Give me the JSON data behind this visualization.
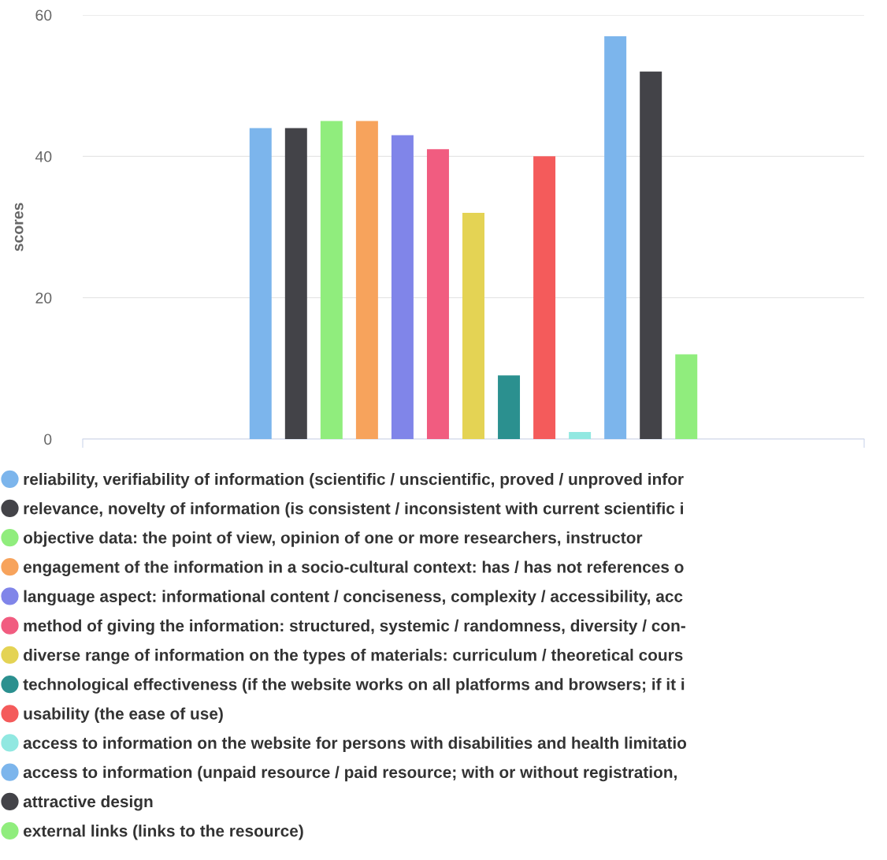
{
  "chart_data": {
    "type": "bar",
    "ylabel": "scores",
    "categories": [
      null
    ],
    "ylim": [
      0,
      60
    ],
    "yticks": [
      0,
      20,
      40,
      60
    ],
    "grid": "y",
    "legend": "bottom",
    "marker": "circle",
    "series": [
      {
        "name": "reliability, verifiability of information (scientific / unscientific, proved / unproved infor",
        "color": "#7cb5ec",
        "values": [
          44
        ]
      },
      {
        "name": "relevance, novelty of information (is consistent / inconsistent with current scientific i",
        "color": "#434348",
        "values": [
          44
        ]
      },
      {
        "name": "objective data: the point of view, opinion of one or more researchers, instructor",
        "color": "#90ed7d",
        "values": [
          45
        ]
      },
      {
        "name": "engagement of the information in a socio-cultural context: has / has not references o",
        "color": "#f7a35c",
        "values": [
          45
        ]
      },
      {
        "name": "language aspect: informational content / conciseness, complexity / accessibility, acc",
        "color": "#8085e9",
        "values": [
          43
        ]
      },
      {
        "name": "method of giving the information: structured, systemic / randomness, diversity / con-",
        "color": "#f15c80",
        "values": [
          41
        ]
      },
      {
        "name": "diverse range of information on the types of materials: curriculum / theoretical cours",
        "color": "#e4d354",
        "values": [
          32
        ]
      },
      {
        "name": "technological effectiveness (if the website works on all platforms and browsers; if it i",
        "color": "#2b908f",
        "values": [
          9
        ]
      },
      {
        "name": "usability (the ease of use)",
        "color": "#f45b5b",
        "values": [
          40
        ]
      },
      {
        "name": "access to information on the website for persons with disabilities and health limitatio",
        "color": "#91e8e1",
        "values": [
          1
        ]
      },
      {
        "name": "access to information (unpaid resource / paid resource; with or without registration,",
        "color": "#7cb5ec",
        "values": [
          57
        ]
      },
      {
        "name": "attractive design",
        "color": "#434348",
        "values": [
          52
        ]
      },
      {
        "name": "external links (links to the resource)",
        "color": "#90ed7d",
        "values": [
          12
        ]
      }
    ]
  }
}
